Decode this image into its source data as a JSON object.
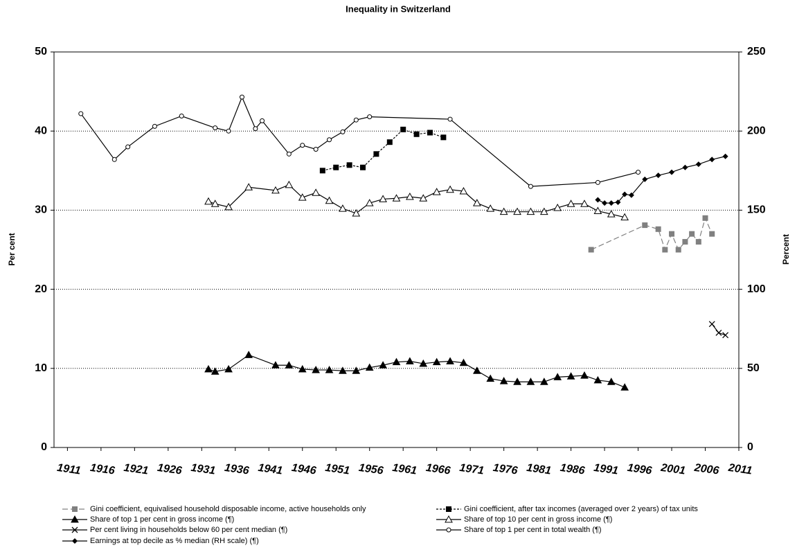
{
  "chart_data": {
    "type": "line",
    "title": "Inequality in Switzerland",
    "y_label": "Per cent",
    "y2_label": "Percent",
    "xlim": [
      1909,
      2011
    ],
    "xticks": [
      1911,
      1916,
      1921,
      1926,
      1931,
      1936,
      1941,
      1946,
      1951,
      1956,
      1961,
      1966,
      1971,
      1976,
      1981,
      1986,
      1991,
      1996,
      2001,
      2006,
      2011
    ],
    "ylim": [
      0,
      50
    ],
    "yticks": [
      0,
      10,
      20,
      30,
      40,
      50
    ],
    "y2lim": [
      0,
      250
    ],
    "y2ticks": [
      0,
      50,
      100,
      150,
      200,
      250
    ],
    "grid": true,
    "series": [
      {
        "name": "Gini coefficient, equivalised household disposable income, active households only",
        "color": "#808080",
        "marker": "square",
        "dash": "long",
        "x": [
          1989,
          1997,
          1999,
          2000,
          2001,
          2002,
          2003,
          2004,
          2005,
          2006,
          2007
        ],
        "values": [
          25.0,
          28.1,
          27.6,
          25.0,
          27.0,
          25.0,
          26.0,
          27.0,
          26.0,
          29.0,
          27.0
        ]
      },
      {
        "name": "Gini coefficient, after tax incomes (averaged over 2 years) of tax units",
        "color": "#000000",
        "marker": "square",
        "dash": "short",
        "x": [
          1949,
          1951,
          1953,
          1955,
          1957,
          1959,
          1961,
          1963,
          1965,
          1967
        ],
        "values": [
          35.0,
          35.4,
          35.7,
          35.4,
          37.1,
          38.6,
          40.2,
          39.6,
          39.8,
          39.2
        ]
      },
      {
        "name": "Share of top 1 per cent in gross income (¶)",
        "color": "#000000",
        "marker": "triangle",
        "dash": "solid",
        "x": [
          1932,
          1933,
          1935,
          1938,
          1942,
          1944,
          1946,
          1948,
          1950,
          1952,
          1954,
          1956,
          1958,
          1960,
          1962,
          1964,
          1966,
          1968,
          1970,
          1972,
          1974,
          1976,
          1978,
          1980,
          1982,
          1984,
          1986,
          1988,
          1990,
          1992,
          1994
        ],
        "values": [
          9.9,
          9.6,
          9.9,
          11.7,
          10.4,
          10.4,
          9.9,
          9.8,
          9.8,
          9.7,
          9.7,
          10.1,
          10.4,
          10.8,
          10.9,
          10.6,
          10.8,
          10.9,
          10.7,
          9.7,
          8.7,
          8.4,
          8.3,
          8.3,
          8.3,
          8.9,
          9.0,
          9.1,
          8.5,
          8.3,
          7.6
        ]
      },
      {
        "name": "Share of top 10 per cent in gross income (¶)",
        "color": "#000000",
        "marker": "open-triangle",
        "dash": "solid",
        "x": [
          1932,
          1933,
          1935,
          1938,
          1942,
          1944,
          1946,
          1948,
          1950,
          1952,
          1954,
          1956,
          1958,
          1960,
          1962,
          1964,
          1966,
          1968,
          1970,
          1972,
          1974,
          1976,
          1978,
          1980,
          1982,
          1984,
          1986,
          1988,
          1990,
          1992,
          1994
        ],
        "values": [
          31.1,
          30.8,
          30.4,
          32.9,
          32.5,
          33.2,
          31.6,
          32.2,
          31.2,
          30.2,
          29.6,
          30.9,
          31.4,
          31.5,
          31.7,
          31.5,
          32.3,
          32.6,
          32.4,
          30.9,
          30.2,
          29.8,
          29.8,
          29.8,
          29.8,
          30.3,
          30.8,
          30.8,
          29.9,
          29.5,
          29.1
        ]
      },
      {
        "name": "Per cent living in households below 60 per cent median (¶)",
        "color": "#000000",
        "marker": "x",
        "dash": "solid",
        "x": [
          2007,
          2008,
          2009
        ],
        "values": [
          15.6,
          14.5,
          14.2
        ]
      },
      {
        "name": "Share of top 1 per cent in total wealth (¶)",
        "color": "#000000",
        "marker": "circle",
        "dash": "solid",
        "x": [
          1913,
          1918,
          1920,
          1924,
          1928,
          1933,
          1935,
          1937,
          1939,
          1940,
          1944,
          1946,
          1948,
          1950,
          1952,
          1954,
          1956,
          1968,
          1980,
          1990,
          1996
        ],
        "values": [
          42.2,
          36.4,
          38.0,
          40.6,
          41.9,
          40.4,
          40.0,
          44.3,
          40.3,
          41.3,
          37.1,
          38.2,
          37.7,
          38.9,
          39.9,
          41.4,
          41.8,
          41.5,
          33.0,
          33.5,
          34.8
        ]
      },
      {
        "name": "Earnings at top decile as % median (RH scale) (¶)",
        "color": "#000000",
        "marker": "diamond",
        "dash": "solid",
        "axis": "y2",
        "x": [
          1990,
          1991,
          1992,
          1993,
          1994,
          1995,
          1997,
          1999,
          2001,
          2003,
          2005,
          2007,
          2009
        ],
        "values": [
          156.5,
          154.5,
          154.5,
          155,
          160,
          159.5,
          169.5,
          172,
          174,
          177,
          179,
          182,
          184
        ]
      }
    ]
  }
}
